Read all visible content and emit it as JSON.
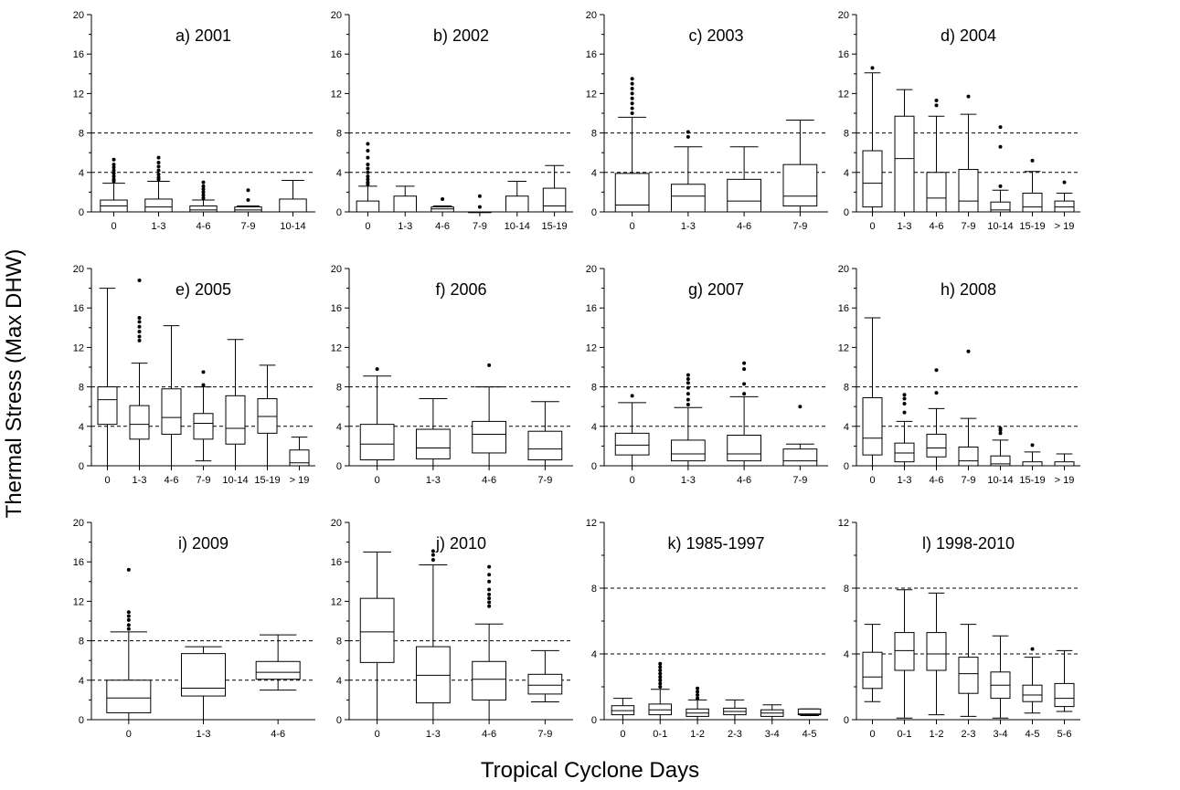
{
  "figure": {
    "ylabel": "Thermal Stress (Max DHW)",
    "xlabel": "Tropical Cyclone Days",
    "reference_lines": [
      4,
      8
    ]
  },
  "chart_data": [
    {
      "type": "box",
      "title": "a) 2001",
      "ylim": [
        0,
        20
      ],
      "yticks": [
        0,
        4,
        8,
        12,
        16,
        20
      ],
      "grid": false,
      "reference_lines": [
        4,
        8
      ],
      "categories": [
        "0",
        "1-3",
        "4-6",
        "7-9",
        "10-14"
      ],
      "boxes": [
        {
          "min": 0,
          "q1": 0,
          "median": 0.6,
          "q3": 1.2,
          "max": 2.9,
          "outliers": [
            3.1,
            3.3,
            3.6,
            3.9,
            4.2,
            4.5,
            4.8,
            5.3
          ]
        },
        {
          "min": 0,
          "q1": 0,
          "median": 0.5,
          "q3": 1.3,
          "max": 3.1,
          "outliers": [
            3.3,
            3.5,
            3.8,
            4.2,
            4.6,
            5.0,
            5.5
          ]
        },
        {
          "min": 0,
          "q1": 0,
          "median": 0.2,
          "q3": 0.6,
          "max": 1.2,
          "outliers": [
            1.4,
            1.7,
            2.0,
            2.3,
            2.6,
            3.0
          ]
        },
        {
          "min": 0,
          "q1": 0,
          "median": 0.2,
          "q3": 0.5,
          "max": 0.6,
          "outliers": [
            1.2,
            2.2
          ]
        },
        {
          "min": 0,
          "q1": 0,
          "median": 0,
          "q3": 1.3,
          "max": 3.2,
          "outliers": []
        }
      ]
    },
    {
      "type": "box",
      "title": "b) 2002",
      "ylim": [
        0,
        20
      ],
      "yticks": [
        0,
        4,
        8,
        12,
        16,
        20
      ],
      "grid": false,
      "reference_lines": [
        4,
        8
      ],
      "categories": [
        "0",
        "1-3",
        "4-6",
        "7-9",
        "10-14",
        "15-19"
      ],
      "boxes": [
        {
          "min": 0,
          "q1": 0,
          "median": 0,
          "q3": 1.1,
          "max": 2.6,
          "outliers": [
            2.8,
            3.0,
            3.3,
            3.6,
            4.0,
            4.4,
            4.8,
            5.5,
            6.2,
            6.9
          ]
        },
        {
          "min": 0,
          "q1": 0,
          "median": 0,
          "q3": 1.6,
          "max": 2.6,
          "outliers": []
        },
        {
          "min": 0,
          "q1": 0,
          "median": 0.3,
          "q3": 0.5,
          "max": 0.6,
          "outliers": [
            1.3
          ]
        },
        {
          "min": 0,
          "q1": 0,
          "median": 0,
          "q3": 0,
          "max": 0,
          "outliers": [
            0.5,
            1.6
          ]
        },
        {
          "min": 0,
          "q1": 0,
          "median": 0,
          "q3": 1.6,
          "max": 3.1,
          "outliers": []
        },
        {
          "min": 0,
          "q1": 0,
          "median": 0.6,
          "q3": 2.4,
          "max": 4.7,
          "outliers": []
        }
      ]
    },
    {
      "type": "box",
      "title": "c) 2003",
      "ylim": [
        0,
        20
      ],
      "yticks": [
        0,
        4,
        8,
        12,
        16,
        20
      ],
      "grid": false,
      "reference_lines": [
        4,
        8
      ],
      "categories": [
        "0",
        "1-3",
        "4-6",
        "7-9"
      ],
      "boxes": [
        {
          "min": 0,
          "q1": 0,
          "median": 0.7,
          "q3": 3.9,
          "max": 9.6,
          "outliers": [
            10.0,
            10.5,
            11.0,
            11.5,
            12.0,
            12.5,
            13.0,
            13.5
          ]
        },
        {
          "min": 0,
          "q1": 0,
          "median": 1.6,
          "q3": 2.8,
          "max": 6.6,
          "outliers": [
            7.6,
            8.1
          ]
        },
        {
          "min": 0,
          "q1": 0,
          "median": 1.1,
          "q3": 3.3,
          "max": 6.6,
          "outliers": []
        },
        {
          "min": 0,
          "q1": 0.6,
          "median": 1.6,
          "q3": 4.8,
          "max": 9.3,
          "outliers": []
        }
      ]
    },
    {
      "type": "box",
      "title": "d) 2004",
      "ylim": [
        0,
        20
      ],
      "yticks": [
        0,
        4,
        8,
        12,
        16,
        20
      ],
      "grid": false,
      "reference_lines": [
        4,
        8
      ],
      "categories": [
        "0",
        "1-3",
        "4-6",
        "7-9",
        "10-14",
        "15-19",
        "> 19"
      ],
      "boxes": [
        {
          "min": 0,
          "q1": 0.5,
          "median": 2.9,
          "q3": 6.2,
          "max": 14.1,
          "outliers": [
            14.6
          ]
        },
        {
          "min": 0,
          "q1": 0,
          "median": 5.4,
          "q3": 9.7,
          "max": 12.4,
          "outliers": []
        },
        {
          "min": 0,
          "q1": 0,
          "median": 1.4,
          "q3": 4.0,
          "max": 9.7,
          "outliers": [
            10.8,
            11.3
          ]
        },
        {
          "min": 0,
          "q1": 0,
          "median": 1.1,
          "q3": 4.3,
          "max": 9.9,
          "outliers": [
            11.7
          ]
        },
        {
          "min": 0,
          "q1": 0,
          "median": 0.2,
          "q3": 1.0,
          "max": 2.2,
          "outliers": [
            2.6,
            6.6,
            8.6
          ]
        },
        {
          "min": 0,
          "q1": 0,
          "median": 0.5,
          "q3": 1.9,
          "max": 4.1,
          "outliers": [
            5.2
          ]
        },
        {
          "min": 0,
          "q1": 0,
          "median": 0.5,
          "q3": 1.1,
          "max": 1.9,
          "outliers": [
            3.0
          ]
        }
      ]
    },
    {
      "type": "box",
      "title": "e) 2005",
      "ylim": [
        0,
        20
      ],
      "yticks": [
        0,
        4,
        8,
        12,
        16,
        20
      ],
      "grid": false,
      "reference_lines": [
        4,
        8
      ],
      "categories": [
        "0",
        "1-3",
        "4-6",
        "7-9",
        "10-14",
        "15-19",
        "> 19"
      ],
      "boxes": [
        {
          "min": 0,
          "q1": 4.2,
          "median": 6.7,
          "q3": 8.0,
          "max": 18.0,
          "outliers": []
        },
        {
          "min": 0,
          "q1": 2.7,
          "median": 4.2,
          "q3": 6.1,
          "max": 10.4,
          "outliers": [
            12.7,
            13.1,
            13.6,
            14.1,
            14.6,
            15.0,
            18.8
          ]
        },
        {
          "min": 0,
          "q1": 3.2,
          "median": 4.9,
          "q3": 7.8,
          "max": 14.2,
          "outliers": []
        },
        {
          "min": 0.5,
          "q1": 2.7,
          "median": 4.3,
          "q3": 5.3,
          "max": 8.0,
          "outliers": [
            8.2,
            9.5
          ]
        },
        {
          "min": 0,
          "q1": 2.2,
          "median": 3.8,
          "q3": 7.1,
          "max": 12.8,
          "outliers": []
        },
        {
          "min": 0,
          "q1": 3.3,
          "median": 5.0,
          "q3": 6.8,
          "max": 10.2,
          "outliers": []
        },
        {
          "min": 0,
          "q1": 0,
          "median": 0.3,
          "q3": 1.6,
          "max": 2.9,
          "outliers": []
        }
      ]
    },
    {
      "type": "box",
      "title": "f) 2006",
      "ylim": [
        0,
        20
      ],
      "yticks": [
        0,
        4,
        8,
        12,
        16,
        20
      ],
      "grid": false,
      "reference_lines": [
        4,
        8
      ],
      "categories": [
        "0",
        "1-3",
        "4-6",
        "7-9"
      ],
      "boxes": [
        {
          "min": 0,
          "q1": 0.6,
          "median": 2.2,
          "q3": 4.2,
          "max": 9.1,
          "outliers": [
            9.8
          ]
        },
        {
          "min": 0,
          "q1": 0.7,
          "median": 1.8,
          "q3": 3.7,
          "max": 6.8,
          "outliers": []
        },
        {
          "min": 0,
          "q1": 1.3,
          "median": 3.2,
          "q3": 4.5,
          "max": 8.0,
          "outliers": [
            10.2
          ]
        },
        {
          "min": 0,
          "q1": 0.6,
          "median": 1.7,
          "q3": 3.5,
          "max": 6.5,
          "outliers": []
        }
      ]
    },
    {
      "type": "box",
      "title": "g) 2007",
      "ylim": [
        0,
        20
      ],
      "yticks": [
        0,
        4,
        8,
        12,
        16,
        20
      ],
      "grid": false,
      "reference_lines": [
        4,
        8
      ],
      "categories": [
        "0",
        "1-3",
        "4-6",
        "7-9"
      ],
      "boxes": [
        {
          "min": 0,
          "q1": 1.1,
          "median": 2.1,
          "q3": 3.3,
          "max": 6.4,
          "outliers": [
            7.1
          ]
        },
        {
          "min": 0,
          "q1": 0.5,
          "median": 1.2,
          "q3": 2.6,
          "max": 5.9,
          "outliers": [
            6.2,
            6.7,
            7.3,
            7.9,
            8.4,
            8.8,
            9.2
          ]
        },
        {
          "min": 0,
          "q1": 0.5,
          "median": 1.2,
          "q3": 3.1,
          "max": 7.0,
          "outliers": [
            7.3,
            8.3,
            9.8,
            10.4
          ]
        },
        {
          "min": 0,
          "q1": 0,
          "median": 0.5,
          "q3": 1.7,
          "max": 2.2,
          "outliers": [
            6.0
          ]
        }
      ]
    },
    {
      "type": "box",
      "title": "h) 2008",
      "ylim": [
        0,
        20
      ],
      "yticks": [
        0,
        4,
        8,
        12,
        16,
        20
      ],
      "grid": false,
      "reference_lines": [
        4,
        8
      ],
      "categories": [
        "0",
        "1-3",
        "4-6",
        "7-9",
        "10-14",
        "15-19",
        "> 19"
      ],
      "boxes": [
        {
          "min": 0,
          "q1": 1.1,
          "median": 2.8,
          "q3": 6.9,
          "max": 15.0,
          "outliers": []
        },
        {
          "min": 0,
          "q1": 0.4,
          "median": 1.3,
          "q3": 2.3,
          "max": 4.5,
          "outliers": [
            5.4,
            6.3,
            6.8,
            7.2
          ]
        },
        {
          "min": 0,
          "q1": 0.9,
          "median": 1.8,
          "q3": 3.2,
          "max": 5.8,
          "outliers": [
            7.4,
            9.7
          ]
        },
        {
          "min": 0,
          "q1": 0,
          "median": 0.5,
          "q3": 1.9,
          "max": 4.8,
          "outliers": [
            11.6
          ]
        },
        {
          "min": 0,
          "q1": 0,
          "median": 0.2,
          "q3": 1.0,
          "max": 2.6,
          "outliers": [
            3.3,
            3.6,
            3.8
          ]
        },
        {
          "min": 0,
          "q1": 0,
          "median": 0,
          "q3": 0.4,
          "max": 1.4,
          "outliers": [
            2.1
          ]
        },
        {
          "min": 0,
          "q1": 0,
          "median": 0,
          "q3": 0.4,
          "max": 1.2,
          "outliers": []
        }
      ]
    },
    {
      "type": "box",
      "title": "i) 2009",
      "ylim": [
        0,
        20
      ],
      "yticks": [
        0,
        4,
        8,
        12,
        16,
        20
      ],
      "grid": false,
      "reference_lines": [
        4,
        8
      ],
      "categories": [
        "0",
        "1-3",
        "4-6"
      ],
      "boxes": [
        {
          "min": 0,
          "q1": 0.7,
          "median": 2.2,
          "q3": 4.0,
          "max": 8.9,
          "outliers": [
            9.2,
            9.6,
            10.1,
            10.5,
            10.9,
            15.2
          ]
        },
        {
          "min": 0,
          "q1": 2.4,
          "median": 3.2,
          "q3": 6.7,
          "max": 7.4,
          "outliers": []
        },
        {
          "min": 3.0,
          "q1": 4.1,
          "median": 4.8,
          "q3": 5.9,
          "max": 8.6,
          "outliers": []
        }
      ]
    },
    {
      "type": "box",
      "title": "j) 2010",
      "ylim": [
        0,
        20
      ],
      "yticks": [
        0,
        4,
        8,
        12,
        16,
        20
      ],
      "grid": false,
      "reference_lines": [
        4,
        8
      ],
      "categories": [
        "0",
        "1-3",
        "4-6",
        "7-9"
      ],
      "boxes": [
        {
          "min": 0,
          "q1": 5.8,
          "median": 8.9,
          "q3": 12.3,
          "max": 17.0,
          "outliers": []
        },
        {
          "min": 0,
          "q1": 1.7,
          "median": 4.5,
          "q3": 7.4,
          "max": 15.7,
          "outliers": [
            16.2,
            16.7,
            17.1
          ]
        },
        {
          "min": 0,
          "q1": 2.0,
          "median": 4.1,
          "q3": 5.9,
          "max": 9.7,
          "outliers": [
            11.5,
            11.9,
            12.3,
            12.7,
            13.2,
            14.0,
            14.7,
            15.5
          ]
        },
        {
          "min": 1.8,
          "q1": 2.6,
          "median": 3.5,
          "q3": 4.6,
          "max": 7.0,
          "outliers": []
        }
      ]
    },
    {
      "type": "box",
      "title": "k) 1985-1997",
      "ylim": [
        0,
        12
      ],
      "yticks": [
        0,
        4,
        8,
        12
      ],
      "grid": false,
      "reference_lines": [
        4,
        8
      ],
      "categories": [
        "0",
        "0-1",
        "1-2",
        "2-3",
        "3-4",
        "4-5"
      ],
      "boxes": [
        {
          "min": 0,
          "q1": 0.3,
          "median": 0.55,
          "q3": 0.85,
          "max": 1.3,
          "outliers": []
        },
        {
          "min": 0,
          "q1": 0.3,
          "median": 0.6,
          "q3": 0.95,
          "max": 1.85,
          "outliers": [
            2.0,
            2.2,
            2.4,
            2.6,
            2.8,
            3.0,
            3.2,
            3.4
          ]
        },
        {
          "min": 0,
          "q1": 0.2,
          "median": 0.4,
          "q3": 0.65,
          "max": 1.2,
          "outliers": [
            1.3,
            1.5,
            1.7,
            1.9
          ]
        },
        {
          "min": 0,
          "q1": 0.3,
          "median": 0.5,
          "q3": 0.7,
          "max": 1.2,
          "outliers": []
        },
        {
          "min": 0,
          "q1": 0.2,
          "median": 0.4,
          "q3": 0.6,
          "max": 0.9,
          "outliers": []
        },
        {
          "min": 0.25,
          "q1": 0.3,
          "median": 0.35,
          "q3": 0.65,
          "max": 0.65,
          "outliers": []
        }
      ]
    },
    {
      "type": "box",
      "title": "l) 1998-2010",
      "ylim": [
        0,
        12
      ],
      "yticks": [
        0,
        4,
        8,
        12
      ],
      "grid": false,
      "reference_lines": [
        4,
        8
      ],
      "categories": [
        "0",
        "0-1",
        "1-2",
        "2-3",
        "3-4",
        "4-5",
        "5-6"
      ],
      "boxes": [
        {
          "min": 1.1,
          "q1": 1.9,
          "median": 2.6,
          "q3": 4.1,
          "max": 5.8,
          "outliers": []
        },
        {
          "min": 0.1,
          "q1": 3.0,
          "median": 4.2,
          "q3": 5.3,
          "max": 7.9,
          "outliers": []
        },
        {
          "min": 0.3,
          "q1": 3.0,
          "median": 4.0,
          "q3": 5.3,
          "max": 7.7,
          "outliers": []
        },
        {
          "min": 0.2,
          "q1": 1.6,
          "median": 2.8,
          "q3": 3.8,
          "max": 5.8,
          "outliers": []
        },
        {
          "min": 0.1,
          "q1": 1.3,
          "median": 2.1,
          "q3": 2.9,
          "max": 5.1,
          "outliers": []
        },
        {
          "min": 0.4,
          "q1": 1.1,
          "median": 1.5,
          "q3": 2.1,
          "max": 3.8,
          "outliers": [
            4.3
          ]
        },
        {
          "min": 0.5,
          "q1": 0.8,
          "median": 1.3,
          "q3": 2.2,
          "max": 4.2,
          "outliers": []
        }
      ]
    }
  ]
}
